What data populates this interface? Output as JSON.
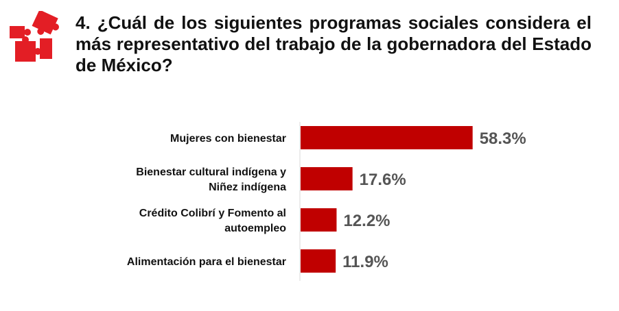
{
  "question": "4. ¿Cuál de los siguientes programas sociales considera el más representativo del trabajo de la gobernadora del Estado de México?",
  "logo": {
    "icon": "puzzle-pieces-icon",
    "color": "#e31e25"
  },
  "colors": {
    "bar": "#c00000",
    "value_label": "#555555",
    "axis": "#d9d9d9",
    "text": "#111111"
  },
  "chart_data": {
    "type": "bar",
    "orientation": "horizontal",
    "categories": [
      [
        "Mujeres con bienestar"
      ],
      [
        "Bienestar cultural indígena y",
        "Niñez indígena"
      ],
      [
        "Crédito Colibrí y Fomento al",
        "autoempleo"
      ],
      [
        "Alimentación para el bienestar"
      ]
    ],
    "values": [
      58.3,
      17.6,
      12.2,
      11.9
    ],
    "value_labels": [
      "58.3%",
      "17.6%",
      "12.2%",
      "11.9%"
    ],
    "unit": "%",
    "grid": false,
    "legend": "none"
  }
}
